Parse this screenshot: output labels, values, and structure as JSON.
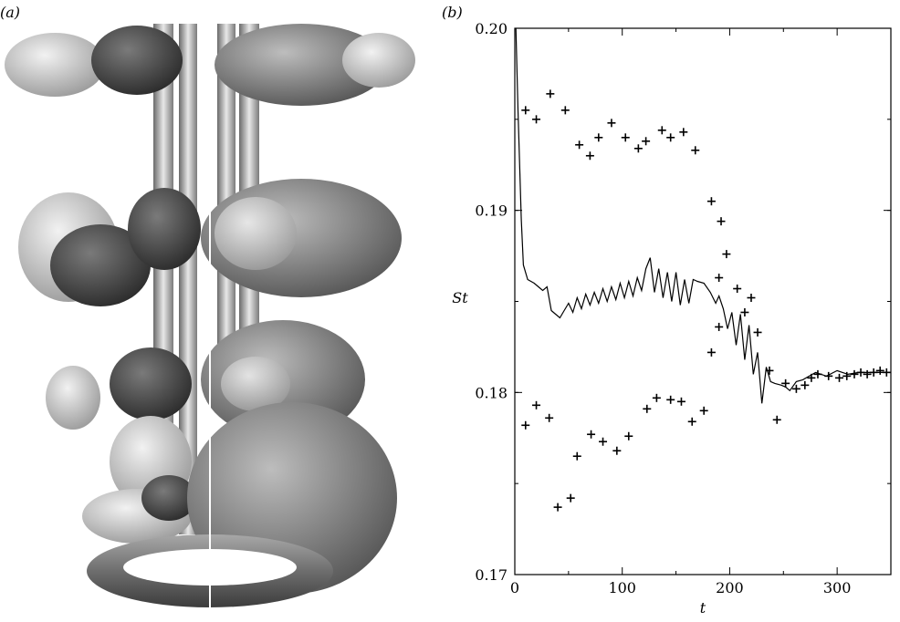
{
  "panels": {
    "a_label": "(a)",
    "b_label": "(b)"
  },
  "chart_data": {
    "type": "scatter",
    "xlabel": "t",
    "ylabel": "St",
    "xlim": [
      0,
      350
    ],
    "ylim": [
      0.17,
      0.2
    ],
    "x_ticks": [
      0,
      100,
      200,
      300
    ],
    "x_tick_labels": [
      "0",
      "100",
      "200",
      "300"
    ],
    "y_ticks": [
      0.17,
      0.18,
      0.19,
      0.2
    ],
    "y_tick_labels": [
      "0.17",
      "0.18",
      "0.19",
      "0.20"
    ],
    "grid": false,
    "series": [
      {
        "style": "line",
        "color": "#000000",
        "points": [
          [
            1,
            0.2
          ],
          [
            3,
            0.1955
          ],
          [
            6,
            0.1895
          ],
          [
            8,
            0.187
          ],
          [
            12,
            0.1862
          ],
          [
            18,
            0.186
          ],
          [
            22,
            0.1858
          ],
          [
            26,
            0.1856
          ],
          [
            30,
            0.1858
          ],
          [
            34,
            0.1845
          ],
          [
            38,
            0.1843
          ],
          [
            42,
            0.1841
          ],
          [
            46,
            0.1845
          ],
          [
            50,
            0.1849
          ],
          [
            54,
            0.1844
          ],
          [
            58,
            0.1852
          ],
          [
            62,
            0.1846
          ],
          [
            66,
            0.1854
          ],
          [
            70,
            0.1848
          ],
          [
            74,
            0.1855
          ],
          [
            78,
            0.1849
          ],
          [
            82,
            0.1857
          ],
          [
            86,
            0.185
          ],
          [
            90,
            0.1858
          ],
          [
            94,
            0.1851
          ],
          [
            98,
            0.186
          ],
          [
            102,
            0.1852
          ],
          [
            106,
            0.1861
          ],
          [
            110,
            0.1853
          ],
          [
            114,
            0.1863
          ],
          [
            118,
            0.1856
          ],
          [
            122,
            0.1868
          ],
          [
            126,
            0.1874
          ],
          [
            130,
            0.1855
          ],
          [
            134,
            0.1868
          ],
          [
            138,
            0.1852
          ],
          [
            142,
            0.1866
          ],
          [
            146,
            0.185
          ],
          [
            150,
            0.1866
          ],
          [
            154,
            0.1848
          ],
          [
            158,
            0.1862
          ],
          [
            162,
            0.1849
          ],
          [
            166,
            0.1862
          ],
          [
            170,
            0.1861
          ],
          [
            176,
            0.186
          ],
          [
            182,
            0.1855
          ],
          [
            187,
            0.1849
          ],
          [
            190,
            0.1853
          ],
          [
            194,
            0.1846
          ],
          [
            198,
            0.1835
          ],
          [
            202,
            0.1844
          ],
          [
            206,
            0.1826
          ],
          [
            210,
            0.1843
          ],
          [
            214,
            0.1818
          ],
          [
            218,
            0.1837
          ],
          [
            222,
            0.181
          ],
          [
            226,
            0.1822
          ],
          [
            230,
            0.1794
          ],
          [
            234,
            0.1814
          ],
          [
            238,
            0.1806
          ],
          [
            242,
            0.1805
          ],
          [
            248,
            0.1804
          ],
          [
            252,
            0.1803
          ],
          [
            256,
            0.1801
          ],
          [
            262,
            0.1806
          ],
          [
            268,
            0.1807
          ],
          [
            274,
            0.1809
          ],
          [
            280,
            0.1811
          ],
          [
            290,
            0.1809
          ],
          [
            300,
            0.1812
          ],
          [
            310,
            0.181
          ],
          [
            320,
            0.1811
          ],
          [
            330,
            0.1811
          ],
          [
            340,
            0.1811
          ],
          [
            350,
            0.1811
          ]
        ]
      },
      {
        "style": "markers",
        "marker": "+",
        "color": "#000000",
        "points": [
          [
            10,
            0.1955
          ],
          [
            20,
            0.195
          ],
          [
            33,
            0.1964
          ],
          [
            47,
            0.1955
          ],
          [
            60,
            0.1936
          ],
          [
            70,
            0.193
          ],
          [
            78,
            0.194
          ],
          [
            90,
            0.1948
          ],
          [
            103,
            0.194
          ],
          [
            115,
            0.1934
          ],
          [
            122,
            0.1938
          ],
          [
            137,
            0.1944
          ],
          [
            145,
            0.194
          ],
          [
            157,
            0.1943
          ],
          [
            168,
            0.1933
          ],
          [
            183,
            0.1905
          ],
          [
            192,
            0.1894
          ],
          [
            197,
            0.1876
          ],
          [
            190,
            0.1863
          ],
          [
            207,
            0.1857
          ],
          [
            214,
            0.1844
          ],
          [
            220,
            0.1852
          ],
          [
            190,
            0.1836
          ],
          [
            183,
            0.1822
          ],
          [
            226,
            0.1833
          ],
          [
            10,
            0.1782
          ],
          [
            20,
            0.1793
          ],
          [
            32,
            0.1786
          ],
          [
            40,
            0.1737
          ],
          [
            52,
            0.1742
          ],
          [
            58,
            0.1765
          ],
          [
            71,
            0.1777
          ],
          [
            82,
            0.1773
          ],
          [
            95,
            0.1768
          ],
          [
            106,
            0.1776
          ],
          [
            123,
            0.1791
          ],
          [
            132,
            0.1797
          ],
          [
            145,
            0.1796
          ],
          [
            155,
            0.1795
          ],
          [
            165,
            0.1784
          ],
          [
            176,
            0.179
          ],
          [
            237,
            0.1812
          ],
          [
            244,
            0.1785
          ],
          [
            252,
            0.1805
          ],
          [
            262,
            0.1802
          ],
          [
            270,
            0.1804
          ],
          [
            276,
            0.1808
          ],
          [
            282,
            0.181
          ],
          [
            292,
            0.1809
          ],
          [
            302,
            0.1808
          ],
          [
            309,
            0.1809
          ],
          [
            316,
            0.181
          ],
          [
            322,
            0.1811
          ],
          [
            328,
            0.181
          ],
          [
            334,
            0.1811
          ],
          [
            340,
            0.1812
          ],
          [
            346,
            0.1811
          ]
        ]
      }
    ]
  }
}
